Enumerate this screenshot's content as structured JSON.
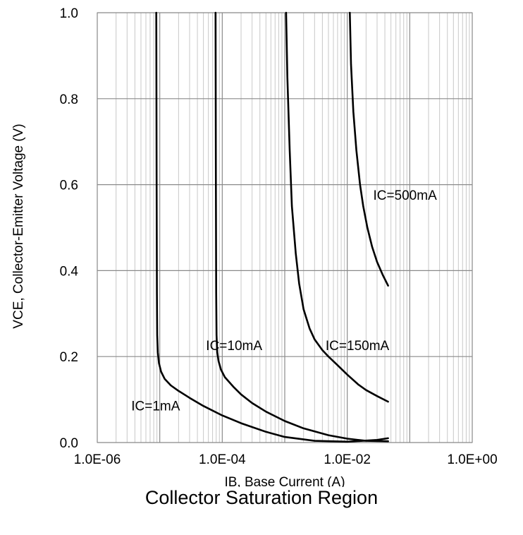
{
  "chart_data": {
    "type": "line",
    "title": "",
    "xlabel": "IB, Base Current (A)",
    "ylabel": "VCE, Collector-Emitter Voltage (V)",
    "x_scale": "log",
    "xlim": [
      1e-06,
      1
    ],
    "ylim": [
      0,
      1
    ],
    "grid": true,
    "x_ticks": [
      {
        "value": 1e-06,
        "label": "1.0E-06"
      },
      {
        "value": 0.0001,
        "label": "1.0E-04"
      },
      {
        "value": 0.01,
        "label": "1.0E-02"
      },
      {
        "value": 1,
        "label": "1.0E+00"
      }
    ],
    "y_ticks": [
      {
        "value": 0.0,
        "label": "0.0"
      },
      {
        "value": 0.2,
        "label": "0.2"
      },
      {
        "value": 0.4,
        "label": "0.4"
      },
      {
        "value": 0.6,
        "label": "0.6"
      },
      {
        "value": 0.8,
        "label": "0.8"
      },
      {
        "value": 1.0,
        "label": "1.0"
      }
    ],
    "series": [
      {
        "name": "IC=1mA",
        "x": [
          8.8e-06,
          8.9e-06,
          9e-06,
          9.1e-06,
          9.3e-06,
          9.7e-06,
          1.05e-05,
          1.2e-05,
          1.5e-05,
          2e-05,
          3e-05,
          5e-05,
          0.0001,
          0.0002,
          0.0005,
          0.001,
          0.003,
          0.01,
          0.03,
          0.045
        ],
        "y": [
          1.0,
          0.6,
          0.35,
          0.25,
          0.21,
          0.185,
          0.165,
          0.148,
          0.133,
          0.12,
          0.104,
          0.085,
          0.063,
          0.045,
          0.025,
          0.013,
          0.004,
          0.002,
          0.006,
          0.01
        ]
      },
      {
        "name": "IC=10mA",
        "x": [
          7.8e-05,
          7.9e-05,
          8e-05,
          8.1e-05,
          8.3e-05,
          8.7e-05,
          9.5e-05,
          0.00011,
          0.00015,
          0.0002,
          0.0003,
          0.0005,
          0.001,
          0.002,
          0.005,
          0.01,
          0.02,
          0.045
        ],
        "y": [
          1.0,
          0.6,
          0.35,
          0.25,
          0.21,
          0.19,
          0.17,
          0.152,
          0.13,
          0.112,
          0.092,
          0.072,
          0.05,
          0.033,
          0.017,
          0.009,
          0.004,
          0.003
        ]
      },
      {
        "name": "IC=150mA",
        "x": [
          0.00105,
          0.0011,
          0.0012,
          0.0013,
          0.0015,
          0.0017,
          0.002,
          0.0025,
          0.003,
          0.004,
          0.005,
          0.007,
          0.01,
          0.015,
          0.02,
          0.03,
          0.045
        ],
        "y": [
          1.0,
          0.85,
          0.68,
          0.55,
          0.44,
          0.37,
          0.31,
          0.265,
          0.24,
          0.215,
          0.2,
          0.18,
          0.158,
          0.135,
          0.122,
          0.108,
          0.095
        ]
      },
      {
        "name": "IC=500mA",
        "x": [
          0.011,
          0.0115,
          0.0125,
          0.014,
          0.016,
          0.018,
          0.021,
          0.025,
          0.03,
          0.037,
          0.045
        ],
        "y": [
          1.0,
          0.88,
          0.77,
          0.68,
          0.6,
          0.55,
          0.5,
          0.455,
          0.42,
          0.39,
          0.365
        ]
      }
    ],
    "annotations": [
      "IC=1mA",
      "IC=10mA",
      "IC=150mA",
      "IC=500mA"
    ]
  },
  "caption": "Collector Saturation Region"
}
